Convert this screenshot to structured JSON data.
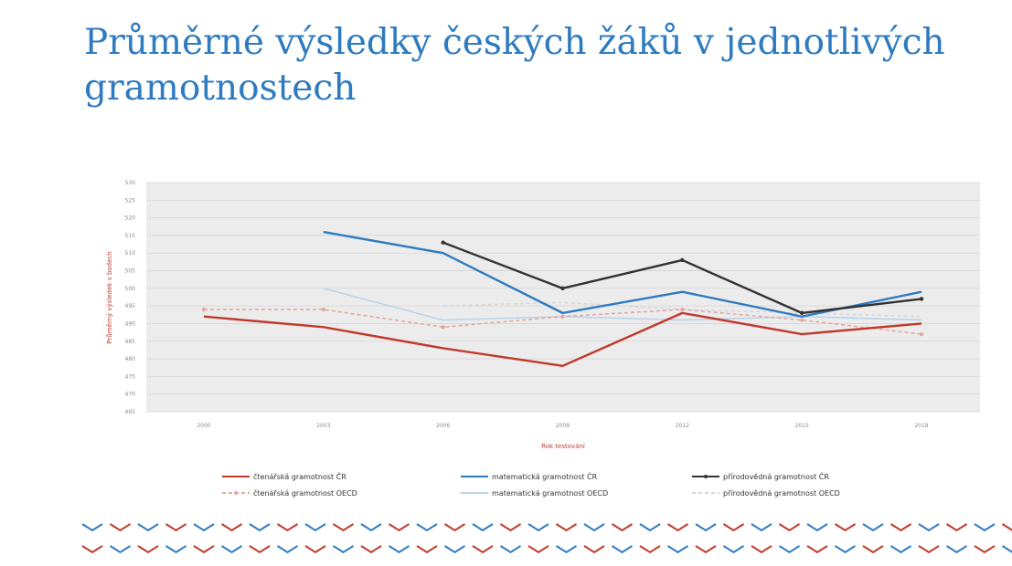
{
  "title": "Průměrné výsledky českých žáků v jednotlivých gramotnostech",
  "chart_data": {
    "type": "line",
    "title": "Průměrné výsledky českých žáků v jednotlivých gramotnostech",
    "xlabel": "Rok testování",
    "ylabel": "Průměrný výsledek v bodech",
    "x": [
      "2000",
      "2003",
      "2006",
      "2009",
      "2012",
      "2015",
      "2018"
    ],
    "ylim": [
      465,
      530
    ],
    "yticks": [
      "530",
      "525",
      "520",
      "515",
      "510",
      "505",
      "500",
      "495",
      "490",
      "485",
      "480",
      "475",
      "470",
      "465"
    ],
    "grid": true,
    "legend_position": "bottom",
    "series": [
      {
        "name": "čtenářská gramotnost ČR",
        "color": "#c0392b",
        "dash": "",
        "marker": "none",
        "values": [
          492,
          489,
          483,
          478,
          493,
          487,
          490
        ]
      },
      {
        "name": "matematická gramotnost ČR",
        "color": "#2e7bc0",
        "dash": "",
        "marker": "none",
        "values": [
          null,
          516,
          510,
          493,
          499,
          492,
          499
        ]
      },
      {
        "name": "přírodovědná gramotnost ČR",
        "color": "#333333",
        "dash": "",
        "marker": "dot",
        "values": [
          null,
          null,
          513,
          500,
          508,
          493,
          497
        ]
      },
      {
        "name": "čtenářská gramotnost OECD",
        "color": "#e4a9a0",
        "dash": "4 3",
        "marker": "dot",
        "values": [
          494,
          494,
          489,
          492,
          494,
          491,
          487
        ]
      },
      {
        "name": "matematická gramotnost OECD",
        "color": "#b9d4ea",
        "dash": "",
        "marker": "none",
        "values": [
          null,
          500,
          491,
          492,
          491,
          492,
          491
        ]
      },
      {
        "name": "přírodovědná gramotnost OECD",
        "color": "#d8d8d8",
        "dash": "4 3",
        "marker": "none",
        "values": [
          null,
          null,
          495,
          496,
          494,
          493,
          492
        ]
      }
    ]
  }
}
